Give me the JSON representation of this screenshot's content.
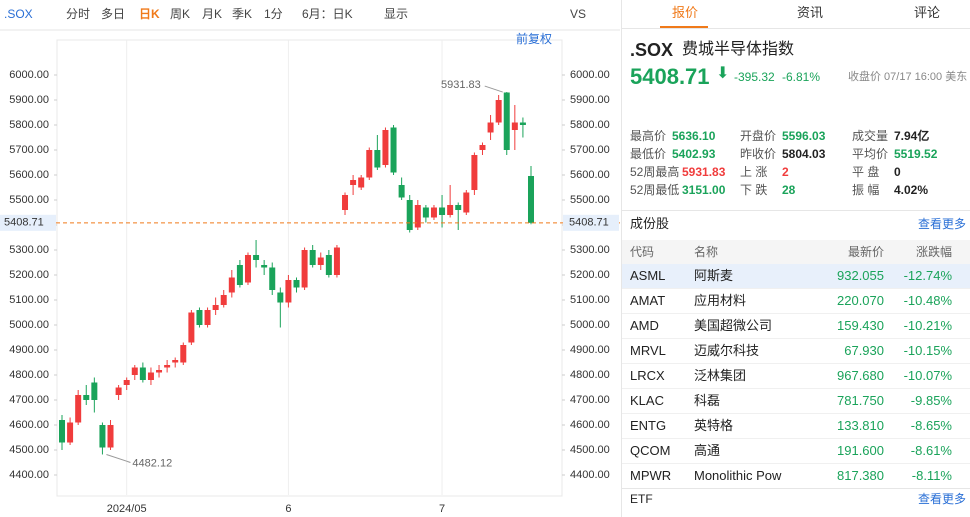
{
  "toolbar": {
    "items": [
      ".SOX",
      "分时",
      "多日",
      "日K",
      "周K",
      "月K",
      "季K",
      "1分",
      "6月：日K",
      "显示",
      "VS"
    ],
    "adjust": "前复权"
  },
  "chart_data": {
    "type": "candlestick",
    "categories": [
      null,
      null,
      null,
      null,
      null,
      null,
      null,
      null,
      "2024/05",
      null,
      null,
      null,
      null,
      null,
      null,
      null,
      null,
      null,
      null,
      null,
      null,
      null,
      null,
      null,
      null,
      null,
      null,
      null,
      "6",
      null,
      null,
      null,
      null,
      null,
      null,
      null,
      null,
      null,
      null,
      null,
      null,
      null,
      null,
      null,
      null,
      null,
      null,
      "7",
      null,
      null,
      null,
      null,
      null,
      null,
      null,
      null,
      null,
      null,
      null
    ],
    "open": [
      4620,
      4530,
      4610,
      4720,
      4770,
      4600,
      4510,
      4720,
      4760,
      4800,
      4830,
      4780,
      4810,
      4830,
      4850,
      4850,
      4930,
      5060,
      5000,
      5060,
      5080,
      5130,
      5240,
      5170,
      5280,
      5240,
      5230,
      5130,
      5090,
      5180,
      5150,
      5300,
      5240,
      5280,
      5200,
      5460,
      5560,
      5550,
      5590,
      5700,
      5640,
      5790,
      5560,
      5500,
      5390,
      5470,
      5430,
      5470,
      5440,
      5480,
      5450,
      5540,
      5700,
      5770,
      5810,
      5930,
      5780,
      5810,
      5596.03
    ],
    "high": [
      4640,
      4630,
      4740,
      4760,
      4790,
      4610,
      4620,
      4760,
      4790,
      4840,
      4850,
      4830,
      4840,
      4860,
      4870,
      4930,
      5060,
      5070,
      5070,
      5110,
      5140,
      5220,
      5260,
      5290,
      5340,
      5260,
      5250,
      5150,
      5200,
      5190,
      5310,
      5320,
      5290,
      5300,
      5320,
      5530,
      5600,
      5600,
      5710,
      5760,
      5790,
      5800,
      5590,
      5520,
      5500,
      5480,
      5480,
      5520,
      5560,
      5490,
      5540,
      5690,
      5730,
      5840,
      5920,
      5931.83,
      5880,
      5830,
      5636.1
    ],
    "low": [
      4500,
      4520,
      4600,
      4680,
      4650,
      4482.12,
      4500,
      4700,
      4740,
      4780,
      4770,
      4760,
      4790,
      4810,
      4830,
      4840,
      4920,
      4990,
      4990,
      5040,
      5070,
      5110,
      5150,
      5160,
      5230,
      5200,
      5120,
      4990,
      5070,
      5130,
      5140,
      5230,
      5220,
      5190,
      5190,
      5440,
      5520,
      5540,
      5580,
      5620,
      5630,
      5600,
      5500,
      5370,
      5380,
      5410,
      5420,
      5390,
      5430,
      5380,
      5440,
      5520,
      5680,
      5740,
      5800,
      5680,
      5700,
      5750,
      5402.93
    ],
    "close": [
      4530,
      4610,
      4720,
      4700,
      4700,
      4510,
      4600,
      4750,
      4780,
      4830,
      4780,
      4810,
      4820,
      4840,
      4860,
      4920,
      5050,
      5000,
      5060,
      5080,
      5120,
      5190,
      5160,
      5280,
      5260,
      5230,
      5140,
      5090,
      5180,
      5150,
      5300,
      5240,
      5270,
      5200,
      5310,
      5520,
      5580,
      5590,
      5700,
      5630,
      5780,
      5610,
      5510,
      5380,
      5480,
      5430,
      5470,
      5440,
      5480,
      5460,
      5530,
      5680,
      5720,
      5810,
      5900,
      5700,
      5810,
      5800,
      5408.71
    ],
    "up_color": "#f03c3c",
    "down_color": "#1aa35a",
    "ylim": [
      4320,
      6140
    ],
    "yticks": [
      {
        "value": 4400,
        "label": "4400.00"
      },
      {
        "value": 4500,
        "label": "4500.00"
      },
      {
        "value": 4600,
        "label": "4600.00"
      },
      {
        "value": 4700,
        "label": "4700.00"
      },
      {
        "value": 4800,
        "label": "4800.00"
      },
      {
        "value": 4900,
        "label": "4900.00"
      },
      {
        "value": 5000,
        "label": "5000.00"
      },
      {
        "value": 5100,
        "label": "5100.00"
      },
      {
        "value": 5200,
        "label": "5200.00"
      },
      {
        "value": 5300,
        "label": "5300.00"
      },
      {
        "value": 5400,
        "label": "5400.00"
      },
      {
        "value": 5500,
        "label": "5500.00"
      },
      {
        "value": 5600,
        "label": "5600.00"
      },
      {
        "value": 5700,
        "label": "5700.00"
      },
      {
        "value": 5800,
        "label": "5800.00"
      },
      {
        "value": 5900,
        "label": "5900.00"
      },
      {
        "value": 6000,
        "label": "6000.00"
      }
    ]
  },
  "tabs": [
    "报价",
    "资讯",
    "评论"
  ],
  "quote": {
    "symbol": ".SOX",
    "name": "费城半导体指数",
    "price": "5408.71",
    "change": "-395.32",
    "change_pct": "-6.81%",
    "status": "收盘价 07/17 16:00 美东",
    "stats": [
      [
        "最高价",
        "5636.10",
        "开盘价",
        "5596.03",
        "成交量",
        "7.94亿"
      ],
      [
        "最低价",
        "5402.93",
        "昨收价",
        "5804.03",
        "平均价",
        "5519.52"
      ],
      [
        "52周最高",
        "5931.83",
        "上 涨",
        "2",
        "平 盘",
        "0"
      ],
      [
        "52周最低",
        "3151.00",
        "下 跌",
        "28",
        "振 幅",
        "4.02%"
      ]
    ]
  },
  "constituents": {
    "title": "成份股",
    "more": "查看更多",
    "columns": [
      "代码",
      "名称",
      "最新价",
      "涨跌幅"
    ],
    "rows": [
      [
        "ASML",
        "阿斯麦",
        "932.055",
        "-12.74%"
      ],
      [
        "AMAT",
        "应用材料",
        "220.070",
        "-10.48%"
      ],
      [
        "AMD",
        "美国超微公司",
        "159.430",
        "-10.21%"
      ],
      [
        "MRVL",
        "迈威尔科技",
        "67.930",
        "-10.15%"
      ],
      [
        "LRCX",
        "泛林集团",
        "967.680",
        "-10.07%"
      ],
      [
        "KLAC",
        "科磊",
        "781.750",
        "-9.85%"
      ],
      [
        "ENTG",
        "英特格",
        "133.810",
        "-8.65%"
      ],
      [
        "QCOM",
        "高通",
        "191.600",
        "-8.61%"
      ],
      [
        "MPWR",
        "Monolithic Pow",
        "817.380",
        "-8.11%"
      ]
    ]
  },
  "etf": {
    "title": "ETF",
    "more": "查看更多"
  }
}
